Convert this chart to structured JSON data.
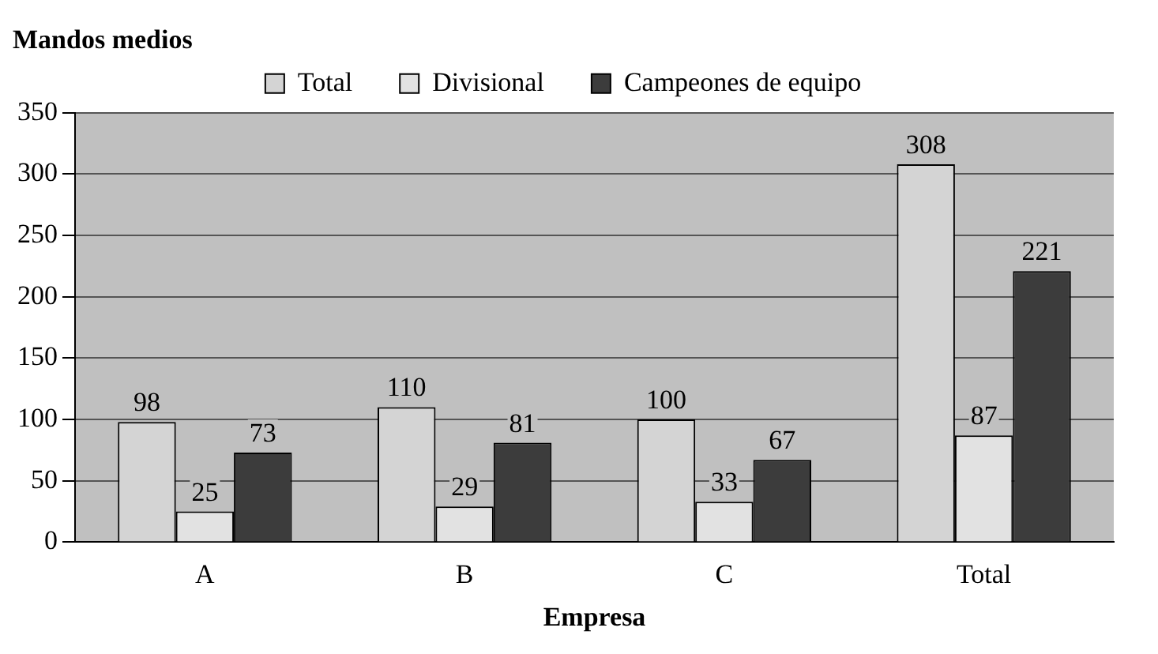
{
  "chart_data": {
    "type": "bar",
    "title": "Mandos medios",
    "xlabel": "Empresa",
    "categories": [
      "A",
      "B",
      "C",
      "Total"
    ],
    "series": [
      {
        "name": "Total",
        "color": "#d4d4d4",
        "values": [
          98,
          110,
          100,
          308
        ]
      },
      {
        "name": "Divisional",
        "color": "#e2e2e2",
        "values": [
          25,
          29,
          33,
          87
        ]
      },
      {
        "name": "Campeones de equipo",
        "color": "#3c3c3c",
        "values": [
          73,
          81,
          67,
          221
        ]
      }
    ],
    "ylim": [
      0,
      350
    ],
    "yticks": [
      0,
      50,
      100,
      150,
      200,
      250,
      300,
      350
    ],
    "grid": "y",
    "legend": "top",
    "data_labels": true
  }
}
